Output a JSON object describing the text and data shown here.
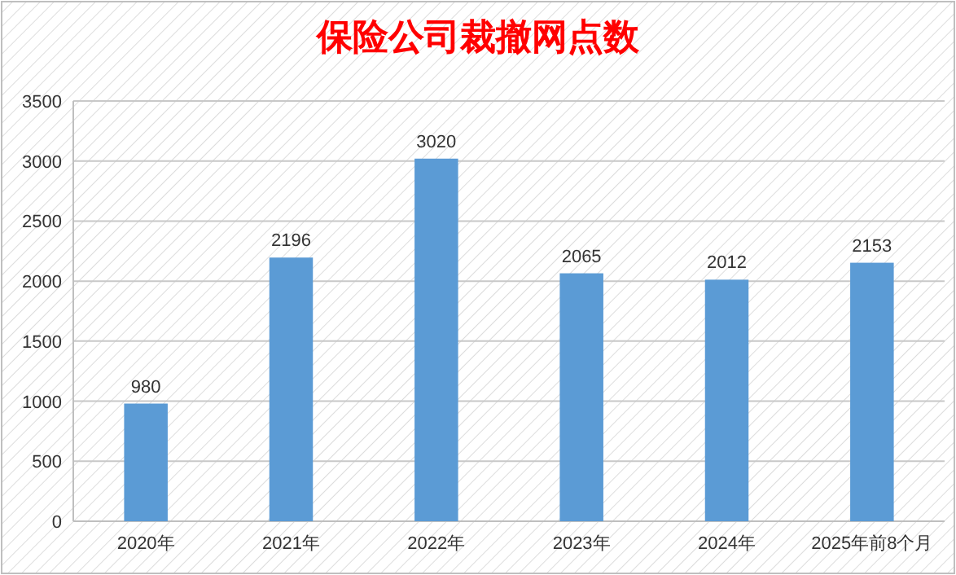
{
  "chart_data": {
    "type": "bar",
    "title": "保险公司裁撤网点数",
    "categories": [
      "2020年",
      "2021年",
      "2022年",
      "2023年",
      "2024年",
      "2025年前8个月"
    ],
    "values": [
      980,
      2196,
      3020,
      2065,
      2012,
      2153
    ],
    "color": "#5b9bd5",
    "ylim": [
      0,
      3500
    ],
    "yticks": [
      0,
      500,
      1000,
      1500,
      2000,
      2500,
      3000,
      3500
    ],
    "grid": "y",
    "data_labels": true
  }
}
